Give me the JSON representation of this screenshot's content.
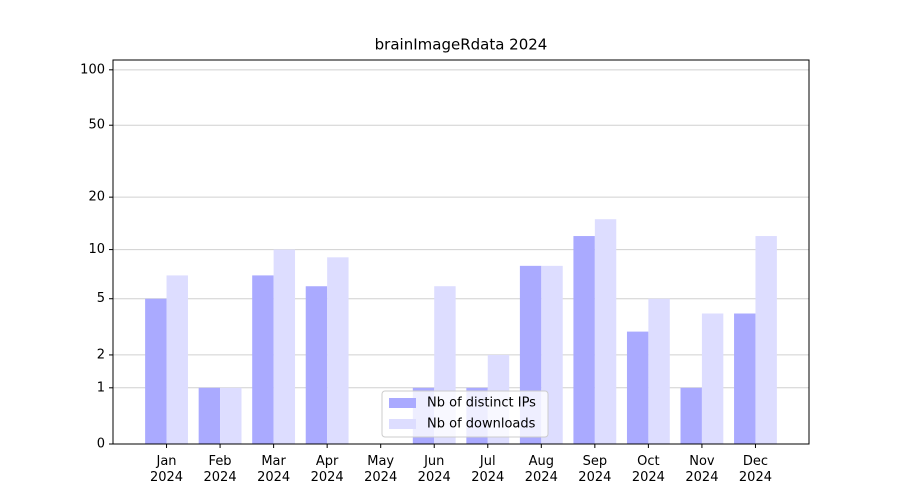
{
  "chart_data": {
    "type": "bar",
    "title": "brainImageRdata 2024",
    "categories": [
      "Jan\n2024",
      "Feb\n2024",
      "Mar\n2024",
      "Apr\n2024",
      "May\n2024",
      "Jun\n2024",
      "Jul\n2024",
      "Aug\n2024",
      "Sep\n2024",
      "Oct\n2024",
      "Nov\n2024",
      "Dec\n2024"
    ],
    "series": [
      {
        "name": "Nb of distinct IPs",
        "color": "#aaaaff",
        "values": [
          5,
          1,
          7,
          6,
          0,
          1,
          1,
          8,
          12,
          3,
          1,
          4
        ]
      },
      {
        "name": "Nb of downloads",
        "color": "#ddddff",
        "values": [
          7,
          1,
          10,
          9,
          0,
          6,
          2,
          8,
          15,
          5,
          4,
          12
        ]
      }
    ],
    "yscale": "log1p",
    "ylim": [
      0,
      113
    ],
    "yticks": [
      0,
      1,
      2,
      5,
      10,
      20,
      50,
      100
    ],
    "grid": true,
    "legend": "lower center"
  }
}
